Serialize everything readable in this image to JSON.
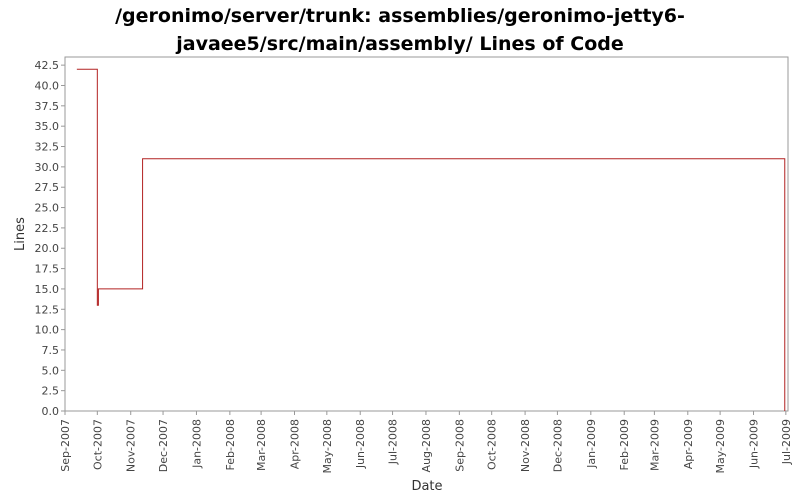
{
  "chart_data": {
    "type": "line",
    "title_line1": "/geronimo/server/trunk: assemblies/geronimo-jetty6-",
    "title_line2": "javaee5/src/main/assembly/ Lines of Code",
    "xlabel": "Date",
    "ylabel": "Lines",
    "ylim": [
      0,
      43.5
    ],
    "yticks": [
      "0.0",
      "2.5",
      "5.0",
      "7.5",
      "10.0",
      "12.5",
      "15.0",
      "17.5",
      "20.0",
      "22.5",
      "25.0",
      "27.5",
      "30.0",
      "32.5",
      "35.0",
      "37.5",
      "40.0",
      "42.5"
    ],
    "xlim": [
      "2007-09-01",
      "2009-07-03"
    ],
    "xticks": [
      {
        "date": "2007-09-01",
        "label": "Sep-2007"
      },
      {
        "date": "2007-10-01",
        "label": "Oct-2007"
      },
      {
        "date": "2007-11-01",
        "label": "Nov-2007"
      },
      {
        "date": "2007-12-01",
        "label": "Dec-2007"
      },
      {
        "date": "2008-01-01",
        "label": "Jan-2008"
      },
      {
        "date": "2008-02-01",
        "label": "Feb-2008"
      },
      {
        "date": "2008-03-01",
        "label": "Mar-2008"
      },
      {
        "date": "2008-04-01",
        "label": "Apr-2008"
      },
      {
        "date": "2008-05-01",
        "label": "May-2008"
      },
      {
        "date": "2008-06-01",
        "label": "Jun-2008"
      },
      {
        "date": "2008-07-01",
        "label": "Jul-2008"
      },
      {
        "date": "2008-08-01",
        "label": "Aug-2008"
      },
      {
        "date": "2008-09-01",
        "label": "Sep-2008"
      },
      {
        "date": "2008-10-01",
        "label": "Oct-2008"
      },
      {
        "date": "2008-11-01",
        "label": "Nov-2008"
      },
      {
        "date": "2008-12-01",
        "label": "Dec-2008"
      },
      {
        "date": "2009-01-01",
        "label": "Jan-2009"
      },
      {
        "date": "2009-02-01",
        "label": "Feb-2009"
      },
      {
        "date": "2009-03-01",
        "label": "Mar-2009"
      },
      {
        "date": "2009-04-01",
        "label": "Apr-2009"
      },
      {
        "date": "2009-05-01",
        "label": "May-2009"
      },
      {
        "date": "2009-06-01",
        "label": "Jun-2009"
      },
      {
        "date": "2009-07-01",
        "label": "Jul-2009"
      }
    ],
    "series": [
      {
        "color": "#b22222",
        "step": true,
        "points": [
          {
            "x": "2007-09-12",
            "y": 42
          },
          {
            "x": "2007-10-01",
            "y": 13
          },
          {
            "x": "2007-10-02",
            "y": 15
          },
          {
            "x": "2007-11-12",
            "y": 31
          },
          {
            "x": "2009-06-30",
            "y": 0
          }
        ]
      }
    ],
    "grid": false,
    "legend": "none"
  }
}
